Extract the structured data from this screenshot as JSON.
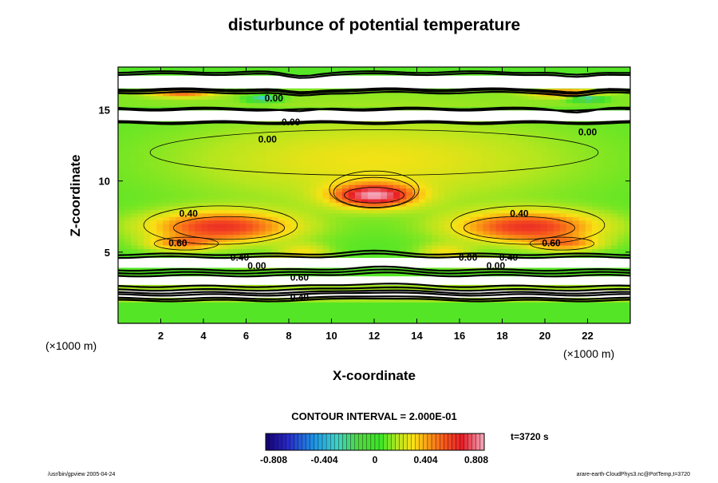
{
  "chart_data": {
    "type": "heatmap",
    "title": "disturbunce of potential temperature",
    "xlabel": "X-coordinate",
    "ylabel": "Z-coordinate",
    "x_unit": "(×1000 m)",
    "y_unit": "(×1000 m)",
    "xlim": [
      0,
      24
    ],
    "ylim": [
      0,
      18
    ],
    "x_ticks": [
      "2",
      "4",
      "6",
      "8",
      "10",
      "12",
      "14",
      "16",
      "18",
      "20",
      "22"
    ],
    "y_ticks": [
      "5",
      "10",
      "15"
    ],
    "contour_interval": "CONTOUR INTERVAL = 2.000E-01",
    "time_label": "t=3720 s",
    "colorbar": {
      "min": -0.808,
      "max": 0.808,
      "tick_labels": [
        "-0.808",
        "-0.404",
        "0",
        "0.404",
        "0.808"
      ]
    },
    "contour_labels": [
      {
        "text": "0.40",
        "x": 3.3,
        "y": 7.5
      },
      {
        "text": "0.40",
        "x": 18.8,
        "y": 7.5
      },
      {
        "text": "0.60",
        "x": 2.8,
        "y": 5.4
      },
      {
        "text": "0.60",
        "x": 20.3,
        "y": 5.4
      },
      {
        "text": "0.40",
        "x": 5.7,
        "y": 4.4
      },
      {
        "text": "0.00",
        "x": 6.5,
        "y": 3.8
      },
      {
        "text": "0.00",
        "x": 16.4,
        "y": 4.4
      },
      {
        "text": "0.40",
        "x": 18.3,
        "y": 4.4
      },
      {
        "text": "0.00",
        "x": 17.7,
        "y": 3.8
      },
      {
        "text": "0.00",
        "x": 7.0,
        "y": 12.7
      },
      {
        "text": "0.00",
        "x": 22.0,
        "y": 13.2
      },
      {
        "text": "0.00",
        "x": 8.1,
        "y": 13.9
      },
      {
        "text": "0.00",
        "x": 7.3,
        "y": 15.6
      },
      {
        "text": "0.60",
        "x": 8.5,
        "y": 3.0
      },
      {
        "text": "0.40",
        "x": 8.5,
        "y": 1.6
      }
    ],
    "features": [
      {
        "kind": "bubble",
        "x": 12.0,
        "y": 9.0,
        "value": 0.8
      },
      {
        "kind": "wing",
        "side": "left",
        "value": 0.7
      },
      {
        "kind": "wing",
        "side": "right",
        "value": 0.7
      }
    ]
  },
  "footer": {
    "left": "/usr/bin/gpview 2005-04-24",
    "right": "arare-earth-CloudPhys3.nc@PotTemp,t=3720"
  }
}
